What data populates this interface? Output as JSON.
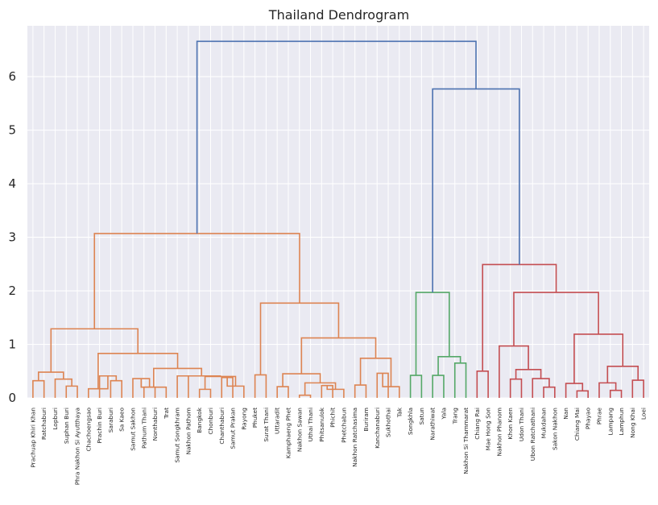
{
  "chart_data": {
    "type": "dendrogram",
    "title": "Thailand Dendrogram",
    "xlabel": "",
    "ylabel": "",
    "ylim": [
      0,
      6.95
    ],
    "yticks": [
      0,
      1,
      2,
      3,
      4,
      5,
      6
    ],
    "grid": true,
    "colors": {
      "background": "#eaeaf2",
      "grid": "#ffffff",
      "root": "#4c72b0",
      "cluster_1": "#dd8452",
      "cluster_2": "#55a868",
      "cluster_3": "#c44e52"
    },
    "leaves": [
      "Prachuap Khiri Khan",
      "Ratchaburi",
      "Lopburi",
      "Suphan Buri",
      "Phra Nakhon Si Ayutthaya",
      "Chachoengsao",
      "Prachin Buri",
      "Saraburi",
      "Sa Kaeo",
      "Samut Sakhon",
      "Pathum Thani",
      "Nonthaburi",
      "Trat",
      "Samut Songkhram",
      "Nakhon Pathom",
      "Bangkok",
      "Chonburi",
      "Chanthaburi",
      "Samut Prakan",
      "Rayong",
      "Phuket",
      "Surat Thani",
      "Uttaradit",
      "Kamphaeng Phet",
      "Nakhon Sawan",
      "Uthai Thani",
      "Phitsanulok",
      "Phichit",
      "Phetchabun",
      "Nakhon Ratchasima",
      "Buriram",
      "Kanchanaburi",
      "Sukhothai",
      "Tak",
      "Songkhla",
      "Satun",
      "Narathiwat",
      "Yala",
      "Trang",
      "Nakhon Si Thammarat",
      "Chiang Rai",
      "Mae Hong Son",
      "Nakhon Phanom",
      "Khon Kaen",
      "Udon Thani",
      "Ubon Ratchathani",
      "Mukdahan",
      "Sakon Nakhon",
      "Nan",
      "Chiang Mai",
      "Phayao",
      "Phrae",
      "Lampang",
      "Lamphun",
      "Nong Khai",
      "Loei"
    ],
    "merges": [
      {
        "a": "L0",
        "b": "L1",
        "h": 0.32,
        "c": "cluster_1"
      },
      {
        "a": "L3",
        "b": "L4",
        "h": 0.22,
        "c": "cluster_1"
      },
      {
        "a": "L2",
        "b": "N1",
        "h": 0.35,
        "c": "cluster_1"
      },
      {
        "a": "N0",
        "b": "N2",
        "h": 0.48,
        "c": "cluster_1"
      },
      {
        "a": "L7",
        "b": "L8",
        "h": 0.32,
        "c": "cluster_1"
      },
      {
        "a": "L6",
        "b": "N4",
        "h": 0.41,
        "c": "cluster_1"
      },
      {
        "a": "L5",
        "b": "N5",
        "h": 0.17,
        "c": "cluster_1"
      },
      {
        "a": "L10",
        "b": "L11",
        "h": 0.2,
        "c": "cluster_1"
      },
      {
        "a": "L9",
        "b": "N7",
        "h": 0.36,
        "c": "cluster_1"
      },
      {
        "a": "N8",
        "b": "L12",
        "h": 0.2,
        "c": "cluster_1"
      },
      {
        "a": "L15",
        "b": "L16",
        "h": 0.16,
        "c": "cluster_1"
      },
      {
        "a": "L17",
        "b": "L18",
        "h": 0.38,
        "c": "cluster_1"
      },
      {
        "a": "N11",
        "b": "L19",
        "h": 0.22,
        "c": "cluster_1"
      },
      {
        "a": "N10",
        "b": "N12",
        "h": 0.4,
        "c": "cluster_1"
      },
      {
        "a": "L13",
        "b": "L14",
        "h": 0.41,
        "c": "cluster_1"
      },
      {
        "a": "N14",
        "b": "N13",
        "h": 0.41,
        "c": "cluster_1"
      },
      {
        "a": "N9",
        "b": "N15",
        "h": 0.55,
        "c": "cluster_1"
      },
      {
        "a": "N6",
        "b": "N16",
        "h": 0.83,
        "c": "cluster_1"
      },
      {
        "a": "N3",
        "b": "N17",
        "h": 1.29,
        "c": "cluster_1"
      },
      {
        "a": "L20",
        "b": "L21",
        "h": 0.43,
        "c": "cluster_1"
      },
      {
        "a": "L22",
        "b": "L23",
        "h": 0.21,
        "c": "cluster_1"
      },
      {
        "a": "L24",
        "b": "L25",
        "h": 0.05,
        "c": "cluster_1"
      },
      {
        "a": "L26",
        "b": "L27",
        "h": 0.23,
        "c": "cluster_1"
      },
      {
        "a": "N22",
        "b": "L28",
        "h": 0.16,
        "c": "cluster_1"
      },
      {
        "a": "N21",
        "b": "N23",
        "h": 0.28,
        "c": "cluster_1"
      },
      {
        "a": "N20",
        "b": "N24",
        "h": 0.45,
        "c": "cluster_1"
      },
      {
        "a": "L29",
        "b": "L30",
        "h": 0.24,
        "c": "cluster_1"
      },
      {
        "a": "L31",
        "b": "L32",
        "h": 0.46,
        "c": "cluster_1"
      },
      {
        "a": "N27",
        "b": "L33",
        "h": 0.21,
        "c": "cluster_1"
      },
      {
        "a": "N26",
        "b": "N28",
        "h": 0.74,
        "c": "cluster_1"
      },
      {
        "a": "N25",
        "b": "N29",
        "h": 1.12,
        "c": "cluster_1"
      },
      {
        "a": "N19",
        "b": "N30",
        "h": 1.77,
        "c": "cluster_1"
      },
      {
        "a": "N18",
        "b": "N31",
        "h": 3.07,
        "c": "cluster_1"
      },
      {
        "a": "L34",
        "b": "L35",
        "h": 0.42,
        "c": "cluster_2"
      },
      {
        "a": "L36",
        "b": "L37",
        "h": 0.42,
        "c": "cluster_2"
      },
      {
        "a": "L38",
        "b": "L39",
        "h": 0.65,
        "c": "cluster_2"
      },
      {
        "a": "N34",
        "b": "N35",
        "h": 0.77,
        "c": "cluster_2"
      },
      {
        "a": "N33",
        "b": "N36",
        "h": 1.97,
        "c": "cluster_2"
      },
      {
        "a": "L40",
        "b": "L41",
        "h": 0.5,
        "c": "cluster_3"
      },
      {
        "a": "L43",
        "b": "L44",
        "h": 0.35,
        "c": "cluster_3"
      },
      {
        "a": "L46",
        "b": "L47",
        "h": 0.2,
        "c": "cluster_3"
      },
      {
        "a": "L45",
        "b": "N40",
        "h": 0.36,
        "c": "cluster_3"
      },
      {
        "a": "N39",
        "b": "N41",
        "h": 0.53,
        "c": "cluster_3"
      },
      {
        "a": "L42",
        "b": "N42",
        "h": 0.97,
        "c": "cluster_3"
      },
      {
        "a": "L49",
        "b": "L50",
        "h": 0.13,
        "c": "cluster_3"
      },
      {
        "a": "L48",
        "b": "N44",
        "h": 0.27,
        "c": "cluster_3"
      },
      {
        "a": "L52",
        "b": "L53",
        "h": 0.14,
        "c": "cluster_3"
      },
      {
        "a": "L51",
        "b": "N46",
        "h": 0.28,
        "c": "cluster_3"
      },
      {
        "a": "L54",
        "b": "L55",
        "h": 0.33,
        "c": "cluster_3"
      },
      {
        "a": "N47",
        "b": "N48",
        "h": 0.59,
        "c": "cluster_3"
      },
      {
        "a": "N45",
        "b": "N49",
        "h": 1.19,
        "c": "cluster_3"
      },
      {
        "a": "N43",
        "b": "N50",
        "h": 1.97,
        "c": "cluster_3"
      },
      {
        "a": "N38",
        "b": "N51",
        "h": 2.49,
        "c": "cluster_3"
      },
      {
        "a": "N37",
        "b": "N52",
        "h": 5.77,
        "c": "root"
      },
      {
        "a": "N32",
        "b": "N53",
        "h": 6.66,
        "c": "root"
      }
    ]
  }
}
